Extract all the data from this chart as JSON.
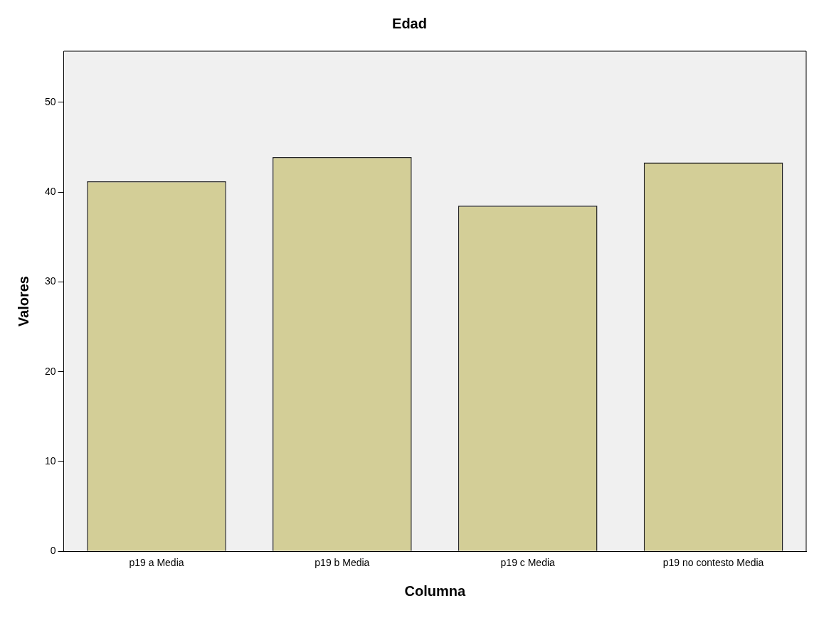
{
  "chart_data": {
    "type": "bar",
    "title": "Edad",
    "xlabel": "Columna",
    "ylabel": "Valores",
    "categories": [
      "p19 a Media",
      "p19 b Media",
      "p19 c Media",
      "p19 no contesto Media"
    ],
    "values": [
      41.2,
      43.9,
      38.5,
      43.3
    ],
    "color": "#d3ce97",
    "ylim": [
      0,
      55.7
    ],
    "yticks": [
      0,
      10,
      20,
      30,
      40,
      50
    ],
    "grid": false,
    "legend": false
  }
}
